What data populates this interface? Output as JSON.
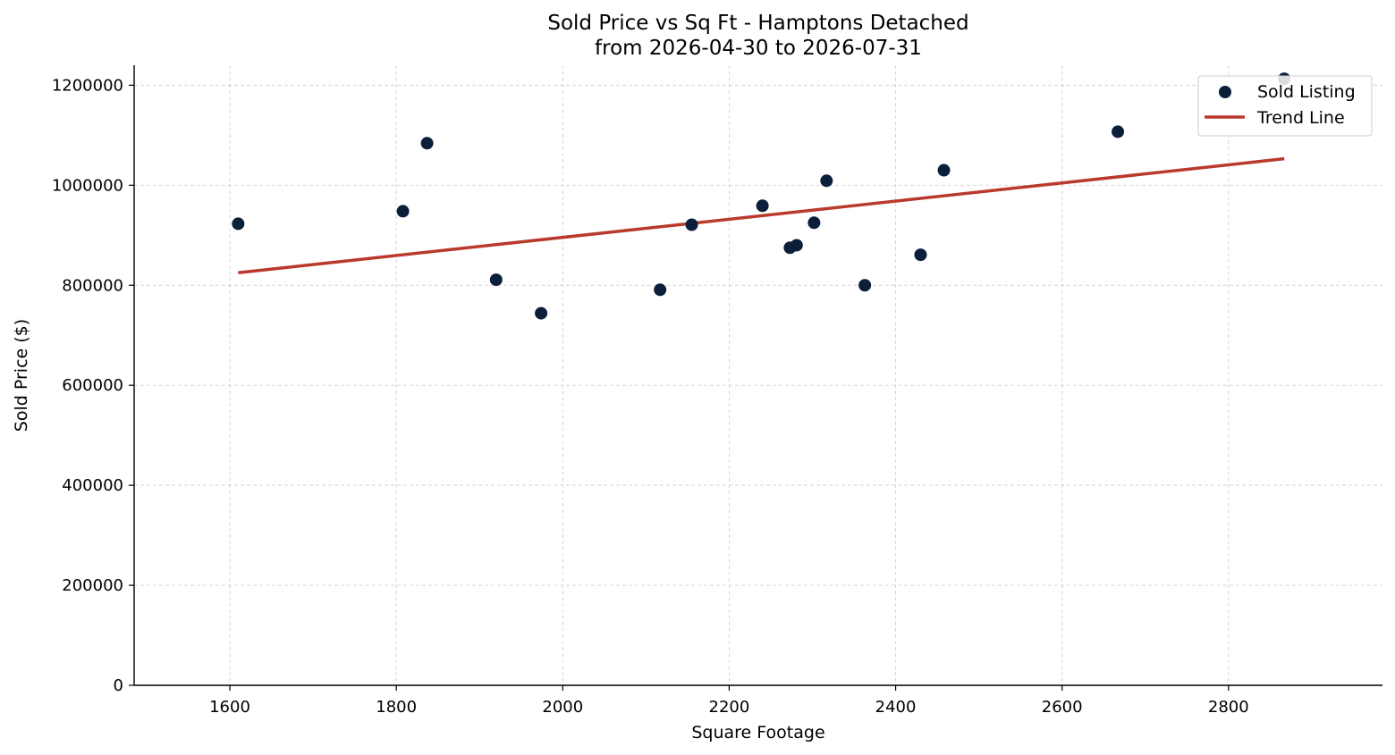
{
  "colors": {
    "points": "#0b1f3a",
    "trend_line": "#b93a2c",
    "grid": "#d3d3d3",
    "axes": "#000000"
  },
  "chart_data": {
    "type": "scatter",
    "title_line1": "Sold Price vs Sq Ft - Hamptons Detached",
    "title_line2": "from 2026-04-30 to 2026-07-31",
    "xlabel": "Square Footage",
    "ylabel": "Sold Price ($)",
    "xlim": [
      1485,
      2985
    ],
    "ylim": [
      0,
      1240000
    ],
    "x_ticks": [
      1600,
      1800,
      2000,
      2200,
      2400,
      2600,
      2800
    ],
    "y_ticks": [
      0,
      200000,
      400000,
      600000,
      800000,
      1000000,
      1200000
    ],
    "grid": true,
    "legend_position": "top-right",
    "series": [
      {
        "name": "Sold Listing",
        "kind": "scatter",
        "points": [
          {
            "x": 1610,
            "y": 923000
          },
          {
            "x": 1808,
            "y": 948000
          },
          {
            "x": 1837,
            "y": 1084000
          },
          {
            "x": 1920,
            "y": 811000
          },
          {
            "x": 1974,
            "y": 744000
          },
          {
            "x": 2117,
            "y": 791000
          },
          {
            "x": 2155,
            "y": 921000
          },
          {
            "x": 2240,
            "y": 959000
          },
          {
            "x": 2273,
            "y": 875000
          },
          {
            "x": 2281,
            "y": 880000
          },
          {
            "x": 2302,
            "y": 925000
          },
          {
            "x": 2317,
            "y": 1009000
          },
          {
            "x": 2363,
            "y": 800000
          },
          {
            "x": 2430,
            "y": 861000
          },
          {
            "x": 2458,
            "y": 1030000
          },
          {
            "x": 2667,
            "y": 1107000
          },
          {
            "x": 2867,
            "y": 1213000
          }
        ]
      },
      {
        "name": "Trend Line",
        "kind": "line",
        "points": [
          {
            "x": 1610,
            "y": 825000
          },
          {
            "x": 2867,
            "y": 1053000
          }
        ]
      }
    ]
  }
}
